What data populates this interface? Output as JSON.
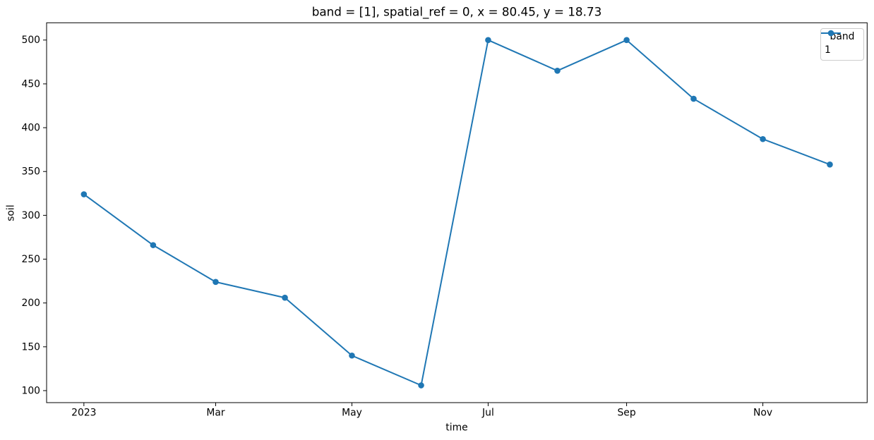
{
  "chart_data": {
    "type": "line",
    "title": "band = [1], spatial_ref = 0, x = 80.45, y = 18.73",
    "xlabel": "time",
    "ylabel": "soil",
    "x": [
      "2023-01-01",
      "2023-02-01",
      "2023-03-01",
      "2023-04-01",
      "2023-05-01",
      "2023-06-01",
      "2023-07-01",
      "2023-08-01",
      "2023-09-01",
      "2023-10-01",
      "2023-11-01",
      "2023-12-01"
    ],
    "series": [
      {
        "name": "1",
        "color": "#1f77b4",
        "marker": "circle",
        "values": [
          324,
          266,
          224,
          206,
          140,
          106,
          500,
          465,
          500,
          433,
          387,
          358
        ]
      }
    ],
    "x_ticks": [
      {
        "label": "2023",
        "date": "2023-01-01"
      },
      {
        "label": "Mar",
        "date": "2023-03-01"
      },
      {
        "label": "May",
        "date": "2023-05-01"
      },
      {
        "label": "Jul",
        "date": "2023-07-01"
      },
      {
        "label": "Sep",
        "date": "2023-09-01"
      },
      {
        "label": "Nov",
        "date": "2023-11-01"
      }
    ],
    "y_ticks": [
      100,
      150,
      200,
      250,
      300,
      350,
      400,
      450,
      500
    ],
    "ylim": [
      86.3,
      519.7
    ],
    "x_margin_frac": 0.05,
    "grid": false,
    "legend": {
      "title": "band",
      "position": "upper right",
      "entries": [
        {
          "label": "1",
          "color": "#1f77b4"
        }
      ]
    },
    "colors": {
      "axes": "#000000",
      "background": "#ffffff",
      "legend_border": "#cccccc"
    }
  }
}
